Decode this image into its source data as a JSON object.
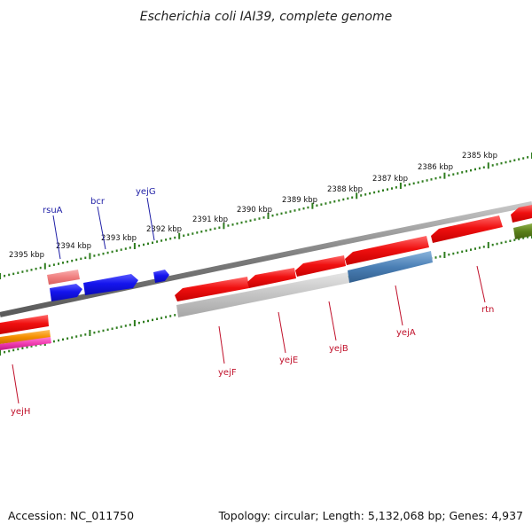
{
  "title": "Escherichia coli IAI39, complete genome",
  "footer": {
    "accession": "Accession: NC_011750",
    "summary": "Topology: circular; Length: 5,132,068 bp; Genes: 4,937"
  },
  "ruler": {
    "color": "#2f7d1f",
    "tick_labels": [
      "2395 kbp",
      "2394 kbp",
      "2393 kbp",
      "2392 kbp",
      "2391 kbp",
      "2390 kbp",
      "2389 kbp",
      "2388 kbp",
      "2387 kbp",
      "2386 kbp",
      "2385 kbp"
    ]
  },
  "gene_labels": {
    "rsuA": "rsuA",
    "bcr": "bcr",
    "yejG": "yejG",
    "yejH": "yejH",
    "yejF": "yejF",
    "yejE": "yejE",
    "yejB": "yejB",
    "yejA": "yejA",
    "rtn": "rtn"
  },
  "colors": {
    "label_blue": "#1f1fa6",
    "label_red": "#c0102a",
    "backbone": "#888888",
    "gene_red": "#f01010",
    "gene_blue": "#1515ee",
    "gene_pink": "#f08080",
    "gene_steel": "#4a7fb5",
    "gene_gray": "#bdbdbd",
    "gene_olive": "#5a7f1a",
    "gene_orange": "#f59000",
    "gene_magenta": "#f03cb0"
  }
}
